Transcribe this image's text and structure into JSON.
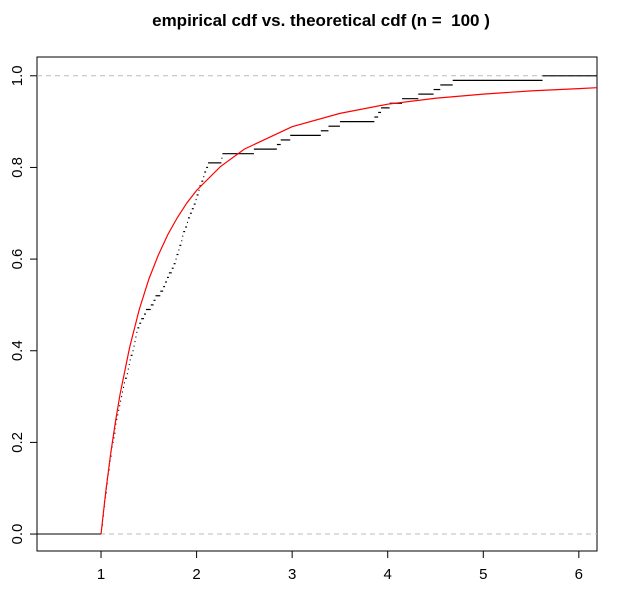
{
  "chart_data": {
    "type": "ecdf",
    "title": "empirical cdf vs. theoretical cdf (n =  100 )",
    "x": [
      1.0,
      1.01,
      1.01,
      1.02,
      1.02,
      1.03,
      1.03,
      1.04,
      1.05,
      1.05,
      1.06,
      1.06,
      1.07,
      1.08,
      1.08,
      1.09,
      1.1,
      1.1,
      1.11,
      1.12,
      1.13,
      1.14,
      1.14,
      1.15,
      1.16,
      1.17,
      1.18,
      1.19,
      1.2,
      1.21,
      1.22,
      1.23,
      1.24,
      1.25,
      1.27,
      1.28,
      1.29,
      1.3,
      1.31,
      1.33,
      1.34,
      1.35,
      1.36,
      1.37,
      1.38,
      1.4,
      1.42,
      1.45,
      1.47,
      1.52,
      1.55,
      1.57,
      1.62,
      1.65,
      1.67,
      1.69,
      1.71,
      1.74,
      1.76,
      1.78,
      1.79,
      1.81,
      1.82,
      1.84,
      1.85,
      1.86,
      1.88,
      1.9,
      1.91,
      1.93,
      1.95,
      1.97,
      1.99,
      2.0,
      2.02,
      2.03,
      2.05,
      2.07,
      2.08,
      2.1,
      2.12,
      2.26,
      2.27,
      2.6,
      2.84,
      2.88,
      2.98,
      3.3,
      3.38,
      3.5,
      3.86,
      3.9,
      3.93,
      4.02,
      4.15,
      4.32,
      4.48,
      4.55,
      4.68,
      5.62
    ],
    "values": [
      0.01,
      0.02,
      0.03,
      0.04,
      0.05,
      0.06,
      0.07,
      0.08,
      0.09,
      0.1,
      0.11,
      0.12,
      0.13,
      0.14,
      0.15,
      0.16,
      0.17,
      0.18,
      0.19,
      0.2,
      0.21,
      0.22,
      0.23,
      0.24,
      0.25,
      0.26,
      0.27,
      0.28,
      0.29,
      0.3,
      0.31,
      0.32,
      0.33,
      0.34,
      0.35,
      0.36,
      0.37,
      0.38,
      0.39,
      0.4,
      0.41,
      0.42,
      0.43,
      0.44,
      0.45,
      0.46,
      0.47,
      0.48,
      0.49,
      0.5,
      0.51,
      0.52,
      0.53,
      0.54,
      0.55,
      0.56,
      0.57,
      0.58,
      0.59,
      0.6,
      0.61,
      0.62,
      0.63,
      0.64,
      0.65,
      0.66,
      0.67,
      0.68,
      0.69,
      0.7,
      0.71,
      0.72,
      0.73,
      0.74,
      0.75,
      0.76,
      0.77,
      0.78,
      0.79,
      0.8,
      0.81,
      0.82,
      0.83,
      0.84,
      0.85,
      0.86,
      0.87,
      0.88,
      0.89,
      0.9,
      0.91,
      0.92,
      0.93,
      0.94,
      0.95,
      0.96,
      0.97,
      0.98,
      0.99,
      1.0
    ],
    "color": "#000000",
    "curve": {
      "color": "#ff0000",
      "x": [
        1,
        1.05,
        1.1,
        1.15,
        1.2,
        1.3,
        1.4,
        1.5,
        1.6,
        1.7,
        1.8,
        1.9,
        2,
        2.25,
        2.5,
        3,
        3.5,
        4,
        4.5,
        5,
        5.5,
        6,
        6.19
      ],
      "values": [
        0,
        0.093,
        0.174,
        0.244,
        0.306,
        0.408,
        0.49,
        0.556,
        0.609,
        0.654,
        0.691,
        0.723,
        0.75,
        0.802,
        0.84,
        0.889,
        0.918,
        0.938,
        0.951,
        0.96,
        0.967,
        0.972,
        0.974
      ]
    },
    "xlim": [
      0.33,
      6.19
    ],
    "ylim": [
      -0.037,
      1.041
    ],
    "xticks": [
      1,
      2,
      3,
      4,
      5,
      6
    ],
    "yticks": [
      {
        "value": 0,
        "label": "0.0"
      },
      {
        "value": 0.2,
        "label": "0.2"
      },
      {
        "value": 0.4,
        "label": "0.4"
      },
      {
        "value": 0.6,
        "label": "0.6"
      },
      {
        "value": 0.8,
        "label": "0.8"
      },
      {
        "value": 1,
        "label": "1.0"
      }
    ],
    "hlines": [
      0,
      1
    ]
  }
}
